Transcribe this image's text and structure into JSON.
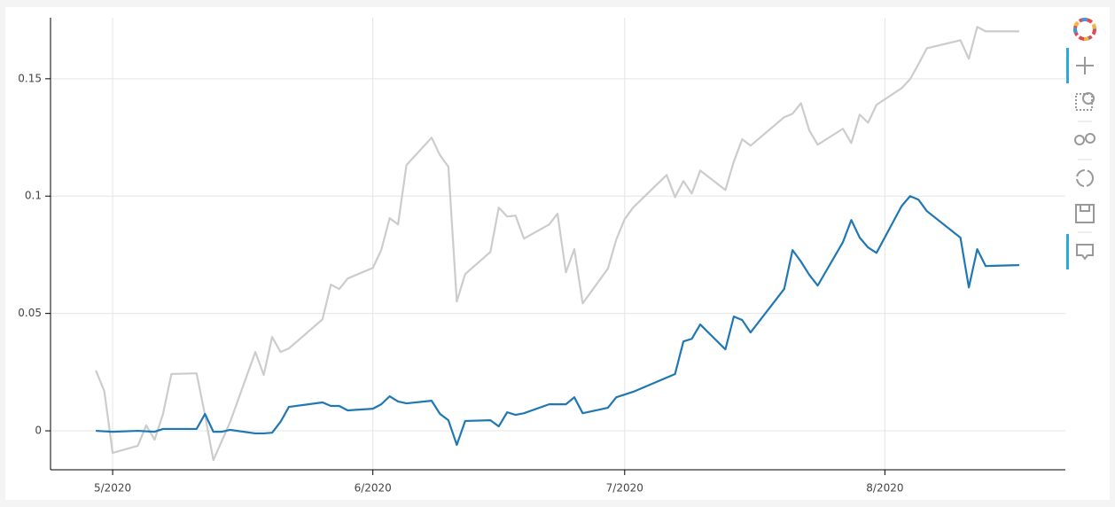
{
  "chart_data": {
    "type": "line",
    "series": [
      {
        "color": "#cccccc",
        "x": [
          -2,
          -1,
          0,
          3,
          4,
          5,
          6,
          7,
          10,
          11,
          12,
          14,
          17,
          18,
          19,
          20,
          21,
          25,
          26,
          27,
          28,
          31,
          32,
          33,
          34,
          35,
          38,
          39,
          40,
          41,
          42,
          45,
          46,
          47,
          48,
          49,
          52,
          53,
          54,
          55,
          56,
          59,
          60,
          61,
          62,
          66,
          67,
          68,
          69,
          70,
          73,
          74,
          75,
          76,
          80,
          81,
          82,
          83,
          84,
          87,
          88,
          89,
          90,
          91,
          94,
          95,
          96,
          97,
          101,
          102,
          103,
          104,
          108
        ],
        "values": [
          0.0257,
          0.017,
          -0.0094,
          -0.0064,
          0.0023,
          -0.0038,
          0.0072,
          0.0242,
          0.0245,
          0.0068,
          -0.0125,
          0.0038,
          0.0336,
          0.0238,
          0.04,
          0.0336,
          0.0351,
          0.0475,
          0.0623,
          0.0604,
          0.0649,
          0.0694,
          0.077,
          0.0906,
          0.0879,
          0.1132,
          0.1249,
          0.1174,
          0.1125,
          0.0551,
          0.0668,
          0.0762,
          0.0951,
          0.0913,
          0.0917,
          0.0819,
          0.0879,
          0.0925,
          0.0675,
          0.0774,
          0.0543,
          0.0691,
          0.0815,
          0.0902,
          0.0951,
          0.109,
          0.0996,
          0.1064,
          0.1011,
          0.1109,
          0.1026,
          0.1147,
          0.1242,
          0.1215,
          0.1336,
          0.1351,
          0.1396,
          0.1279,
          0.1219,
          0.1287,
          0.1226,
          0.1347,
          0.1313,
          0.1389,
          0.146,
          0.1498,
          0.1562,
          0.163,
          0.1664,
          0.1585,
          0.1721,
          0.1702,
          0.1702
        ]
      },
      {
        "color": "#1f77b4",
        "x": [
          -2,
          0,
          3,
          5,
          6,
          10,
          11,
          12,
          13,
          14,
          17,
          18,
          19,
          20,
          21,
          25,
          26,
          27,
          28,
          31,
          32,
          33,
          34,
          35,
          38,
          39,
          40,
          41,
          42,
          45,
          46,
          47,
          48,
          49,
          52,
          54,
          55,
          56,
          59,
          60,
          62,
          67,
          68,
          69,
          70,
          73,
          74,
          75,
          76,
          80,
          81,
          82,
          83,
          84,
          87,
          88,
          89,
          90,
          91,
          94,
          95,
          96,
          97,
          101,
          102,
          103,
          104,
          108
        ],
        "values": [
          0,
          -0.0004,
          0,
          -0.0004,
          0.0008,
          0.0008,
          0.0072,
          -0.0004,
          -0.0004,
          0.0004,
          -0.0011,
          -0.0011,
          -0.0008,
          0.0038,
          0.0102,
          0.0121,
          0.0106,
          0.0106,
          0.0087,
          0.0094,
          0.0113,
          0.0147,
          0.0125,
          0.0117,
          0.0128,
          0.0072,
          0.0045,
          -0.006,
          0.0042,
          0.0045,
          0.0019,
          0.0079,
          0.0068,
          0.0075,
          0.0113,
          0.0113,
          0.0143,
          0.0075,
          0.0098,
          0.0143,
          0.0166,
          0.0242,
          0.0381,
          0.0392,
          0.0453,
          0.0347,
          0.0487,
          0.0472,
          0.0419,
          0.0604,
          0.077,
          0.0721,
          0.0664,
          0.0619,
          0.0804,
          0.0898,
          0.0823,
          0.0781,
          0.0758,
          0.0958,
          0.1,
          0.0985,
          0.0936,
          0.0823,
          0.0611,
          0.0774,
          0.0702,
          0.0706
        ]
      }
    ],
    "xlim": [
      -7.4,
      113.5
    ],
    "xticks": [
      {
        "value": 0,
        "label": "5/2020"
      },
      {
        "value": 31,
        "label": "6/2020"
      },
      {
        "value": 61,
        "label": "7/2020"
      },
      {
        "value": 92,
        "label": "8/2020"
      }
    ],
    "ylim": [
      -0.0166,
      0.176
    ],
    "yticks": [
      0,
      0.05,
      0.1,
      0.15
    ],
    "grid": true
  }
}
